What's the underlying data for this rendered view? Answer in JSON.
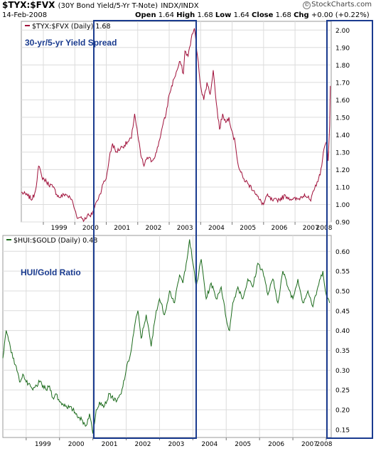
{
  "header": {
    "symbol": "$TYX:$FVX",
    "description": "(30Y Bond Yield/5-Yr T-Note)",
    "exchange": "INDX/INDX",
    "date": "14-Feb-2008",
    "open_label": "Open",
    "open": "1.64",
    "high_label": "High",
    "high": "1.68",
    "low_label": "Low",
    "low": "1.64",
    "close_label": "Close",
    "close": "1.68",
    "chg_label": "Chg",
    "chg": "+0.00 (+0.22%)",
    "brand": "StockCharts.com",
    "copyright_symbol": "©"
  },
  "chart_data": [
    {
      "type": "line",
      "legend": "$TYX:$FVX (Daily) 1.68",
      "annotation": "30-yr/5-yr Yield Spread",
      "line_color": "#a0103a",
      "annotation_color": "#1a3b8f",
      "ylim": [
        0.9,
        2.05
      ],
      "yticks": [
        "0.90",
        "1.00",
        "1.10",
        "1.20",
        "1.30",
        "1.40",
        "1.50",
        "1.60",
        "1.70",
        "1.80",
        "1.90",
        "2.00"
      ],
      "xlim": [
        1998.3,
        2008.15
      ],
      "xticks": [
        "1999",
        "2000",
        "2001",
        "2002",
        "2003",
        "2004",
        "2005",
        "2006",
        "2007",
        "2008"
      ],
      "x": [
        1998.3,
        1998.5,
        1998.65,
        1998.75,
        1998.85,
        1998.95,
        1999.1,
        1999.3,
        1999.5,
        1999.7,
        1999.9,
        2000.0,
        2000.1,
        2000.2,
        2000.3,
        2000.4,
        2000.5,
        2000.6,
        2000.7,
        2000.8,
        2000.9,
        2001.0,
        2001.1,
        2001.2,
        2001.3,
        2001.5,
        2001.7,
        2001.8,
        2001.9,
        2002.0,
        2002.1,
        2002.2,
        2002.3,
        2002.45,
        2002.6,
        2002.75,
        2002.9,
        2003.0,
        2003.15,
        2003.25,
        2003.35,
        2003.45,
        2003.5,
        2003.6,
        2003.7,
        2003.8,
        2003.9,
        2004.0,
        2004.1,
        2004.2,
        2004.3,
        2004.4,
        2004.5,
        2004.6,
        2004.7,
        2004.8,
        2004.9,
        2005.0,
        2005.1,
        2005.2,
        2005.35,
        2005.5,
        2005.7,
        2005.85,
        2006.0,
        2006.1,
        2006.3,
        2006.5,
        2006.7,
        2006.9,
        2007.1,
        2007.3,
        2007.5,
        2007.6,
        2007.7,
        2007.8,
        2007.9,
        2008.0,
        2008.05,
        2008.1,
        2008.12
      ],
      "y": [
        1.07,
        1.05,
        1.03,
        1.08,
        1.22,
        1.16,
        1.13,
        1.1,
        1.04,
        1.06,
        1.03,
        0.97,
        0.92,
        0.93,
        0.91,
        0.94,
        0.93,
        0.97,
        1.02,
        1.06,
        1.12,
        1.15,
        1.27,
        1.35,
        1.3,
        1.33,
        1.36,
        1.38,
        1.52,
        1.4,
        1.28,
        1.22,
        1.27,
        1.25,
        1.3,
        1.42,
        1.52,
        1.63,
        1.72,
        1.77,
        1.82,
        1.75,
        1.88,
        1.85,
        1.95,
        2.01,
        1.85,
        1.68,
        1.6,
        1.7,
        1.63,
        1.77,
        1.58,
        1.43,
        1.52,
        1.47,
        1.5,
        1.42,
        1.35,
        1.22,
        1.15,
        1.12,
        1.08,
        1.03,
        1.0,
        1.05,
        1.02,
        1.03,
        1.05,
        1.03,
        1.03,
        1.06,
        1.02,
        1.08,
        1.13,
        1.17,
        1.3,
        1.36,
        1.25,
        1.45,
        1.68
      ]
    },
    {
      "type": "line",
      "legend": "$HUI:$GOLD (Daily) 0.48",
      "annotation": "HUI/Gold Ratio",
      "line_color": "#1c6b1c",
      "annotation_color": "#1a3b8f",
      "ylim": [
        0.13,
        0.64
      ],
      "yticks": [
        "0.15",
        "0.20",
        "0.25",
        "0.30",
        "0.35",
        "0.40",
        "0.45",
        "0.50",
        "0.55",
        "0.60"
      ],
      "xlim": [
        1998.3,
        2008.15
      ],
      "xticks": [
        "1999",
        "2000",
        "2001",
        "2002",
        "2003",
        "2004",
        "2005",
        "2006",
        "2007",
        "2008"
      ],
      "x": [
        1998.3,
        1998.4,
        1998.5,
        1998.6,
        1998.7,
        1998.8,
        1998.9,
        1999.0,
        1999.2,
        1999.4,
        1999.6,
        1999.7,
        1999.8,
        1999.9,
        2000.0,
        2000.2,
        2000.4,
        2000.6,
        2000.8,
        2000.9,
        2001.0,
        2001.1,
        2001.2,
        2001.35,
        2001.5,
        2001.7,
        2001.85,
        2002.0,
        2002.15,
        2002.25,
        2002.35,
        2002.45,
        2002.6,
        2002.75,
        2002.9,
        2003.0,
        2003.15,
        2003.3,
        2003.45,
        2003.6,
        2003.7,
        2003.8,
        2003.9,
        2004.0,
        2004.1,
        2004.25,
        2004.4,
        2004.55,
        2004.7,
        2004.85,
        2005.0,
        2005.1,
        2005.2,
        2005.35,
        2005.5,
        2005.65,
        2005.8,
        2005.95,
        2006.1,
        2006.25,
        2006.4,
        2006.55,
        2006.7,
        2006.85,
        2007.0,
        2007.15,
        2007.3,
        2007.45,
        2007.6,
        2007.75,
        2007.9,
        2008.0,
        2008.1
      ],
      "y": [
        0.33,
        0.4,
        0.37,
        0.33,
        0.31,
        0.27,
        0.29,
        0.27,
        0.25,
        0.27,
        0.25,
        0.26,
        0.23,
        0.24,
        0.22,
        0.21,
        0.2,
        0.18,
        0.16,
        0.19,
        0.14,
        0.2,
        0.22,
        0.21,
        0.24,
        0.22,
        0.24,
        0.3,
        0.35,
        0.41,
        0.45,
        0.38,
        0.44,
        0.36,
        0.45,
        0.48,
        0.44,
        0.5,
        0.47,
        0.54,
        0.52,
        0.57,
        0.63,
        0.57,
        0.51,
        0.58,
        0.48,
        0.52,
        0.48,
        0.51,
        0.43,
        0.4,
        0.47,
        0.51,
        0.48,
        0.53,
        0.51,
        0.57,
        0.55,
        0.49,
        0.53,
        0.47,
        0.55,
        0.51,
        0.48,
        0.53,
        0.47,
        0.5,
        0.46,
        0.51,
        0.55,
        0.49,
        0.47
      ]
    }
  ]
}
